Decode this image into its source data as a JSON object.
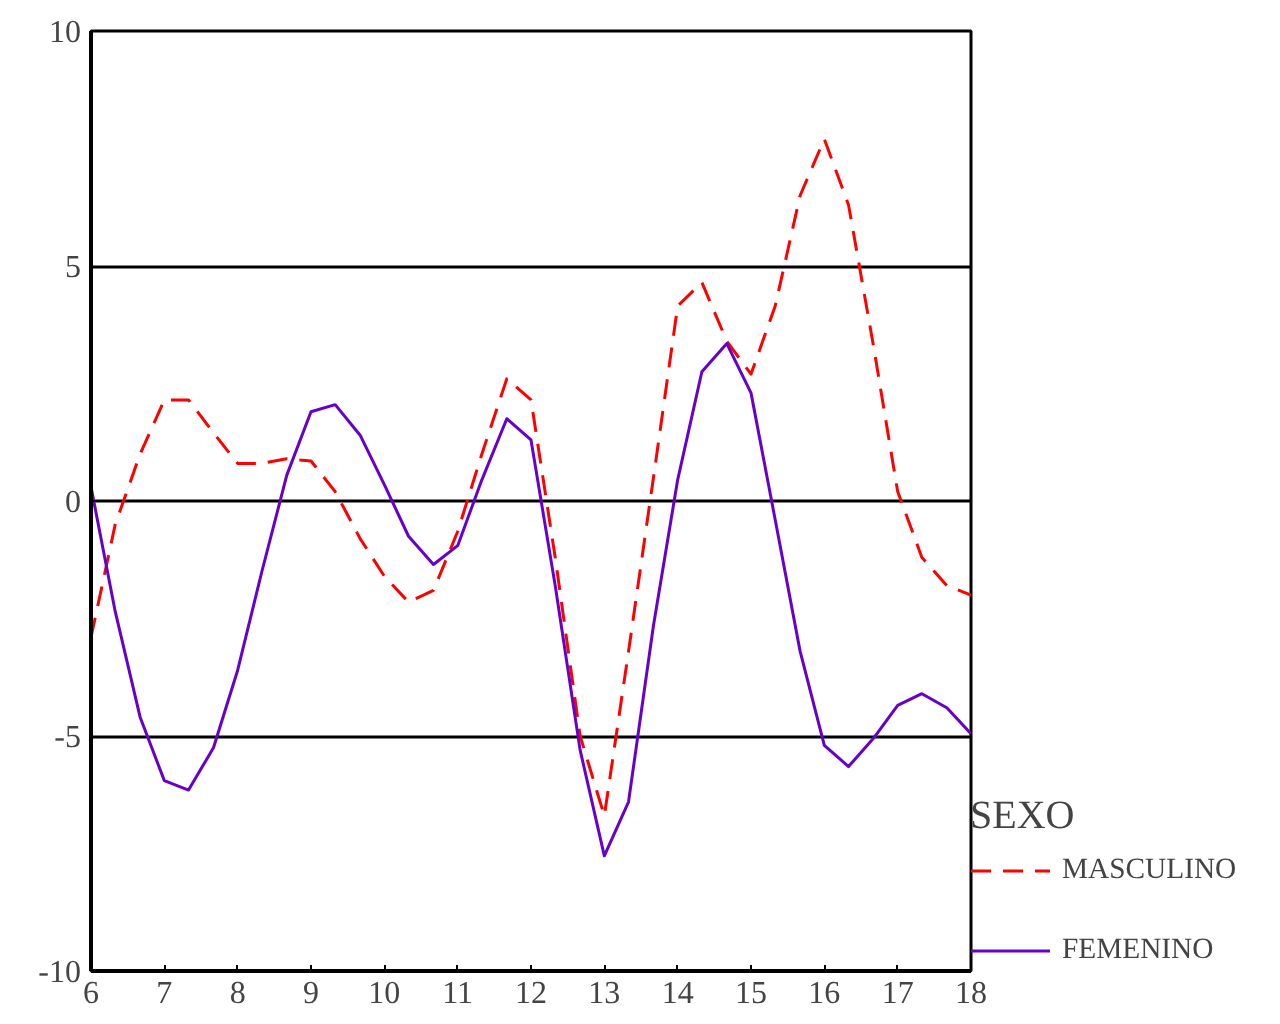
{
  "chart_data": {
    "type": "line",
    "x": [
      6,
      6.33,
      6.67,
      7,
      7.33,
      7.67,
      8,
      8.33,
      8.67,
      9,
      9.33,
      9.67,
      10,
      10.33,
      10.67,
      11,
      11.33,
      11.67,
      12,
      12.33,
      12.67,
      13,
      13.33,
      13.67,
      14,
      14.33,
      14.67,
      15,
      15.33,
      15.67,
      16,
      16.33,
      16.67,
      17,
      17.33,
      17.67,
      18
    ],
    "series": [
      {
        "name": "MASCULINO",
        "color": "#ff0000",
        "line_style": "dashed",
        "values": [
          -2.9,
          -0.5,
          1.0,
          2.15,
          2.15,
          1.45,
          0.8,
          0.8,
          0.9,
          0.85,
          0.2,
          -0.8,
          -1.6,
          -2.15,
          -1.9,
          -0.65,
          1.0,
          2.6,
          2.15,
          -1.2,
          -5.0,
          -6.7,
          -3.2,
          0.5,
          4.15,
          4.65,
          3.4,
          2.7,
          4.15,
          6.5,
          7.7,
          6.3,
          3.3,
          0.2,
          -1.2,
          -1.8,
          -2.0
        ]
      },
      {
        "name": "FEMENINO",
        "color": "#6600cc",
        "line_style": "solid",
        "values": [
          0.3,
          -2.35,
          -4.6,
          -5.95,
          -6.15,
          -5.25,
          -3.6,
          -1.5,
          0.55,
          1.9,
          2.05,
          1.4,
          0.35,
          -0.75,
          -1.35,
          -0.95,
          0.45,
          1.75,
          1.3,
          -1.8,
          -5.3,
          -7.55,
          -6.4,
          -2.65,
          0.45,
          2.75,
          3.35,
          2.3,
          -0.4,
          -3.2,
          -5.2,
          -5.65,
          -5.05,
          -4.35,
          -4.1,
          -4.4,
          -4.95
        ]
      }
    ],
    "xlim": [
      6,
      18
    ],
    "xticks": [
      6,
      7,
      8,
      9,
      10,
      11,
      12,
      13,
      14,
      15,
      16,
      17,
      18
    ],
    "ylim": [
      -10,
      10
    ],
    "yticks": [
      -10,
      -5,
      0,
      5,
      10
    ],
    "grid": "y",
    "legend": "right",
    "legend_title": "SEXO",
    "marker": "none"
  }
}
